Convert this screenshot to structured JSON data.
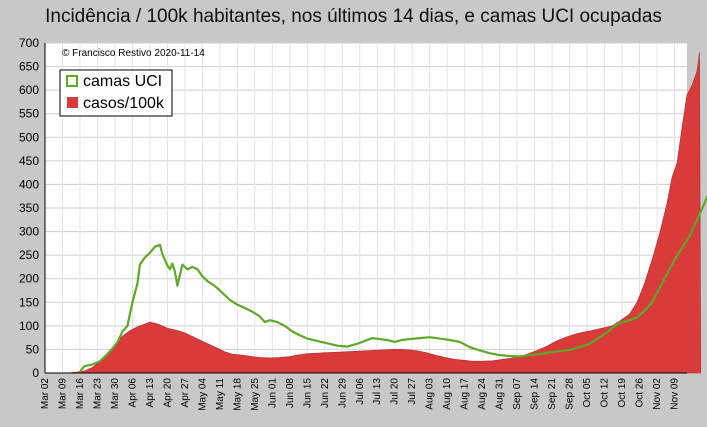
{
  "chart_data": {
    "type": "area",
    "title": "Incidência / 100k habitantes, nos últimos 14 dias, e camas UCI ocupadas",
    "annotation": "© Francisco Restivo 2020-11-14",
    "ylim": [
      0,
      700
    ],
    "yticks": [
      0,
      50,
      100,
      150,
      200,
      250,
      300,
      350,
      400,
      450,
      500,
      550,
      600,
      650,
      700
    ],
    "grid": true,
    "legend_position": "top-left",
    "x_start": "Mar 02",
    "x_ticks": [
      "Mar 02",
      "Mar 09",
      "Mar 16",
      "Mar 23",
      "Mar 30",
      "Apr 06",
      "Apr 13",
      "Apr 20",
      "Apr 27",
      "May 04",
      "May 11",
      "May 18",
      "May 25",
      "Jun 01",
      "Jun 08",
      "Jun 15",
      "Jun 22",
      "Jun 29",
      "Jul 06",
      "Jul 13",
      "Jul 20",
      "Jul 27",
      "Aug 03",
      "Aug 10",
      "Aug 17",
      "Aug 24",
      "Aug 31",
      "Sep 07",
      "Sep 14",
      "Sep 21",
      "Sep 28",
      "Oct 05",
      "Oct 12",
      "Oct 19",
      "Oct 26",
      "Nov 02",
      "Nov 09"
    ],
    "x_tick_every_days": 7,
    "x_last_day": 257,
    "series": [
      {
        "name": "casos/100k",
        "kind": "area",
        "color": "#d93a3a",
        "points": [
          [
            0,
            0
          ],
          [
            9,
            0
          ],
          [
            13,
            2
          ],
          [
            16,
            5
          ],
          [
            19,
            12
          ],
          [
            22,
            25
          ],
          [
            25,
            42
          ],
          [
            28,
            60
          ],
          [
            31,
            78
          ],
          [
            34,
            90
          ],
          [
            37,
            98
          ],
          [
            40,
            104
          ],
          [
            42,
            108
          ],
          [
            45,
            104
          ],
          [
            49,
            95
          ],
          [
            53,
            90
          ],
          [
            56,
            85
          ],
          [
            60,
            75
          ],
          [
            64,
            65
          ],
          [
            68,
            55
          ],
          [
            72,
            45
          ],
          [
            75,
            40
          ],
          [
            79,
            38
          ],
          [
            83,
            35
          ],
          [
            86,
            33
          ],
          [
            90,
            32
          ],
          [
            94,
            33
          ],
          [
            98,
            35
          ],
          [
            101,
            38
          ],
          [
            105,
            41
          ],
          [
            109,
            42
          ],
          [
            112,
            43
          ],
          [
            116,
            44
          ],
          [
            120,
            45
          ],
          [
            124,
            46
          ],
          [
            128,
            47
          ],
          [
            131,
            48
          ],
          [
            135,
            49
          ],
          [
            139,
            50
          ],
          [
            142,
            50
          ],
          [
            146,
            49
          ],
          [
            149,
            47
          ],
          [
            153,
            43
          ],
          [
            156,
            38
          ],
          [
            160,
            33
          ],
          [
            164,
            29
          ],
          [
            168,
            27
          ],
          [
            171,
            25
          ],
          [
            175,
            25
          ],
          [
            179,
            26
          ],
          [
            182,
            28
          ],
          [
            186,
            31
          ],
          [
            190,
            35
          ],
          [
            193,
            40
          ],
          [
            197,
            48
          ],
          [
            201,
            57
          ],
          [
            204,
            66
          ],
          [
            208,
            75
          ],
          [
            212,
            82
          ],
          [
            215,
            86
          ],
          [
            219,
            90
          ],
          [
            223,
            95
          ],
          [
            227,
            100
          ],
          [
            230,
            110
          ],
          [
            234,
            125
          ],
          [
            237,
            150
          ],
          [
            240,
            190
          ],
          [
            243,
            240
          ],
          [
            246,
            295
          ],
          [
            249,
            360
          ],
          [
            251,
            415
          ],
          [
            253,
            445
          ],
          [
            255,
            520
          ],
          [
            257,
            590
          ],
          [
            259,
            610
          ],
          [
            261,
            640
          ],
          [
            262,
            680
          ],
          [
            262.5,
            0
          ]
        ]
      },
      {
        "name": "camas UCI",
        "kind": "line",
        "color": "#5ea82a",
        "points": [
          [
            14,
            2
          ],
          [
            15,
            10
          ],
          [
            16,
            15
          ],
          [
            19,
            18
          ],
          [
            22,
            25
          ],
          [
            25,
            40
          ],
          [
            27,
            52
          ],
          [
            29,
            65
          ],
          [
            31,
            88
          ],
          [
            33,
            100
          ],
          [
            35,
            150
          ],
          [
            37,
            190
          ],
          [
            38,
            230
          ],
          [
            40,
            245
          ],
          [
            42,
            255
          ],
          [
            44,
            268
          ],
          [
            46,
            272
          ],
          [
            47,
            252
          ],
          [
            48,
            240
          ],
          [
            49,
            228
          ],
          [
            50,
            220
          ],
          [
            51,
            232
          ],
          [
            52,
            215
          ],
          [
            53,
            185
          ],
          [
            55,
            230
          ],
          [
            57,
            220
          ],
          [
            59,
            225
          ],
          [
            61,
            220
          ],
          [
            63,
            205
          ],
          [
            65,
            195
          ],
          [
            67,
            188
          ],
          [
            69,
            180
          ],
          [
            71,
            170
          ],
          [
            74,
            155
          ],
          [
            77,
            145
          ],
          [
            80,
            138
          ],
          [
            83,
            130
          ],
          [
            86,
            120
          ],
          [
            88,
            108
          ],
          [
            90,
            112
          ],
          [
            93,
            108
          ],
          [
            96,
            100
          ],
          [
            99,
            88
          ],
          [
            102,
            80
          ],
          [
            105,
            73
          ],
          [
            109,
            68
          ],
          [
            113,
            63
          ],
          [
            117,
            58
          ],
          [
            121,
            56
          ],
          [
            125,
            62
          ],
          [
            128,
            68
          ],
          [
            131,
            74
          ],
          [
            134,
            72
          ],
          [
            137,
            70
          ],
          [
            140,
            66
          ],
          [
            143,
            70
          ],
          [
            146,
            72
          ],
          [
            150,
            74
          ],
          [
            154,
            76
          ],
          [
            158,
            73
          ],
          [
            162,
            70
          ],
          [
            166,
            66
          ],
          [
            170,
            55
          ],
          [
            174,
            48
          ],
          [
            178,
            42
          ],
          [
            182,
            38
          ],
          [
            186,
            36
          ],
          [
            190,
            35
          ],
          [
            194,
            38
          ],
          [
            198,
            40
          ],
          [
            202,
            44
          ],
          [
            206,
            46
          ],
          [
            210,
            49
          ],
          [
            214,
            55
          ],
          [
            218,
            62
          ],
          [
            221,
            72
          ],
          [
            225,
            86
          ],
          [
            228,
            100
          ],
          [
            231,
            108
          ],
          [
            234,
            112
          ],
          [
            237,
            118
          ],
          [
            240,
            132
          ],
          [
            243,
            150
          ],
          [
            246,
            180
          ],
          [
            249,
            210
          ],
          [
            252,
            240
          ],
          [
            255,
            265
          ],
          [
            258,
            290
          ],
          [
            261,
            325
          ],
          [
            264,
            360
          ],
          [
            266,
            385
          ],
          [
            268,
            390
          ],
          [
            270,
            385
          ],
          [
            272,
            390
          ],
          [
            274,
            385
          ],
          [
            276,
            0
          ]
        ]
      }
    ]
  }
}
